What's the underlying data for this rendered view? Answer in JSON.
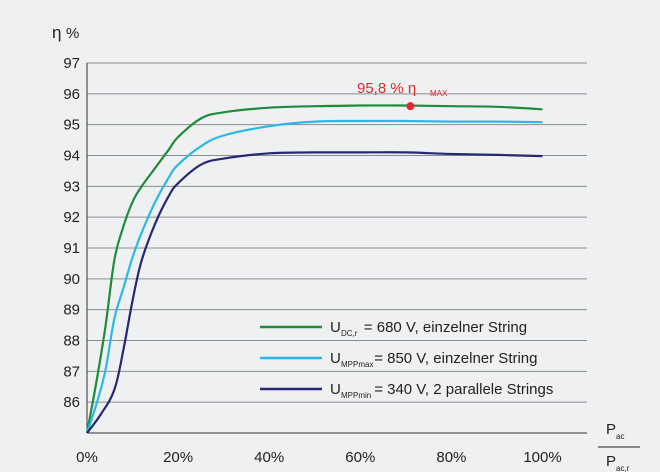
{
  "chart_data": {
    "type": "line",
    "y_axis_symbol": "η",
    "y_axis_unit": "%",
    "x_axis_label": {
      "numerator": "P",
      "numerator_sub": "ac",
      "denominator": "P",
      "denominator_sub": "ac,r"
    },
    "y_ticks": [
      "86",
      "87",
      "88",
      "89",
      "90",
      "91",
      "92",
      "93",
      "94",
      "95",
      "96",
      "97"
    ],
    "x_ticks": [
      "0%",
      "20%",
      "40%",
      "60%",
      "80%",
      "100%"
    ],
    "xlim": [
      0,
      100
    ],
    "ylim": [
      85,
      97
    ],
    "grid": "horizontal",
    "legend_position": "bottom-right",
    "annotation": {
      "text": "95,8 % η",
      "sub": "MAX",
      "x": 71,
      "y": 95.6,
      "color": "#e2272f"
    },
    "series": [
      {
        "color": "#1e8c3a",
        "legend_main": "U",
        "legend_sub": "DC,r",
        "legend_rest": " = 680 V, einzelner String",
        "x": [
          0,
          2,
          4,
          6,
          8,
          10,
          12,
          15,
          18,
          20,
          25,
          30,
          40,
          50,
          60,
          70,
          80,
          90,
          100
        ],
        "y": [
          85,
          86.6,
          88.4,
          90.6,
          91.7,
          92.5,
          93.0,
          93.6,
          94.2,
          94.6,
          95.2,
          95.4,
          95.55,
          95.6,
          95.62,
          95.62,
          95.6,
          95.58,
          95.5
        ]
      },
      {
        "color": "#2bb8e6",
        "legend_main": "U",
        "legend_sub": "MPPmax",
        "legend_rest": " = 850 V, einzelner String",
        "x": [
          0,
          2,
          4,
          6,
          8,
          10,
          12,
          15,
          18,
          20,
          25,
          30,
          40,
          50,
          60,
          70,
          80,
          90,
          100
        ],
        "y": [
          85,
          85.9,
          87.0,
          88.7,
          89.7,
          90.7,
          91.5,
          92.5,
          93.3,
          93.7,
          94.3,
          94.65,
          94.95,
          95.1,
          95.12,
          95.12,
          95.1,
          95.1,
          95.08
        ]
      },
      {
        "color": "#262872",
        "legend_main": "U",
        "legend_sub": "MPPmin",
        "legend_rest": " = 340 V, 2 parallele Strings",
        "x": [
          0,
          3,
          6,
          8,
          10,
          12,
          15,
          18,
          20,
          25,
          30,
          40,
          50,
          60,
          70,
          80,
          90,
          100
        ],
        "y": [
          85,
          85.6,
          86.4,
          87.7,
          89.3,
          90.6,
          91.8,
          92.7,
          93.1,
          93.7,
          93.9,
          94.07,
          94.1,
          94.1,
          94.1,
          94.05,
          94.02,
          93.98
        ]
      }
    ]
  }
}
